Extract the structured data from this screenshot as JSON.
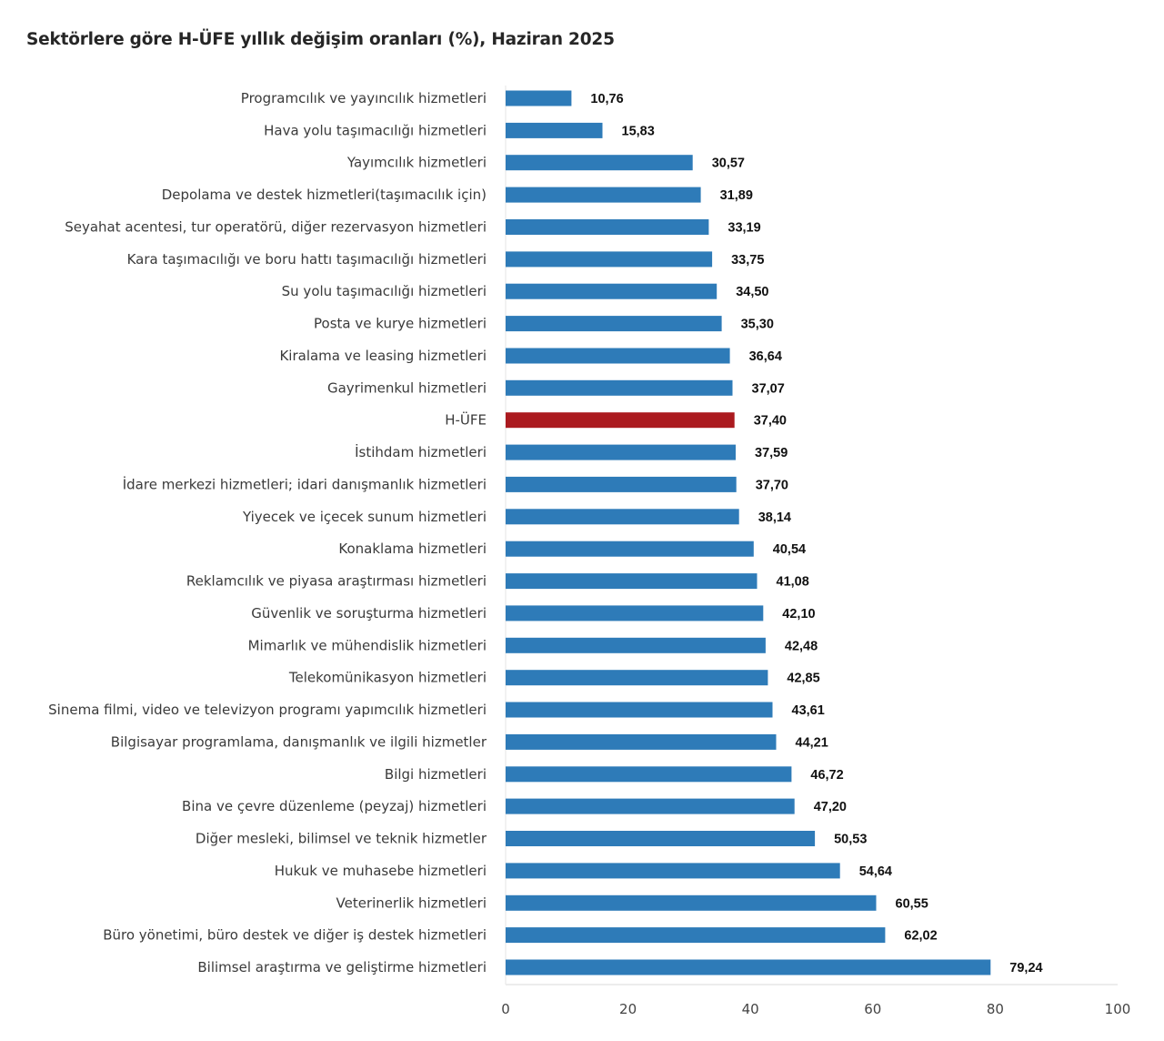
{
  "chart_data": {
    "type": "bar",
    "orientation": "horizontal",
    "title": "Sektörlere göre H-ÜFE yıllık değişim oranları (%), Haziran 2025",
    "xlabel": "",
    "ylabel": "",
    "xlim": [
      0,
      100
    ],
    "xticks": [
      0,
      20,
      40,
      60,
      80,
      100
    ],
    "xtick_labels": [
      "0",
      "20",
      "40",
      "60",
      "80",
      "100"
    ],
    "grid": false,
    "legend": null,
    "categories": [
      "Programcılık ve yayıncılık hizmetleri",
      "Hava yolu taşımacılığı hizmetleri",
      "Yayımcılık hizmetleri",
      "Depolama ve destek hizmetleri(taşımacılık için)",
      "Seyahat acentesi, tur operatörü, diğer rezervasyon hizmetleri",
      "Kara taşımacılığı ve boru hattı taşımacılığı hizmetleri",
      "Su yolu taşımacılığı hizmetleri",
      "Posta ve kurye hizmetleri",
      "Kiralama ve leasing hizmetleri",
      "Gayrimenkul hizmetleri",
      "H-ÜFE",
      "İstihdam hizmetleri",
      "İdare merkezi hizmetleri; idari danışmanlık hizmetleri",
      "Yiyecek ve içecek sunum hizmetleri",
      "Konaklama hizmetleri",
      "Reklamcılık ve piyasa araştırması hizmetleri",
      "Güvenlik ve soruşturma hizmetleri",
      "Mimarlık ve mühendislik hizmetleri",
      "Telekomünikasyon hizmetleri",
      "Sinema filmi, video ve televizyon programı yapımcılık hizmetleri",
      "Bilgisayar programlama, danışmanlık ve ilgili hizmetler",
      "Bilgi hizmetleri",
      "Bina ve çevre düzenleme (peyzaj) hizmetleri",
      "Diğer mesleki, bilimsel ve teknik hizmetler",
      "Hukuk ve muhasebe hizmetleri",
      "Veterinerlik hizmetleri",
      "Büro yönetimi, büro destek ve diğer iş destek hizmetleri",
      "Bilimsel araştırma ve geliştirme hizmetleri"
    ],
    "values": [
      10.76,
      15.83,
      30.57,
      31.89,
      33.19,
      33.75,
      34.5,
      35.3,
      36.64,
      37.07,
      37.4,
      37.59,
      37.7,
      38.14,
      40.54,
      41.08,
      42.1,
      42.48,
      42.85,
      43.61,
      44.21,
      46.72,
      47.2,
      50.53,
      54.64,
      60.55,
      62.02,
      79.24
    ],
    "value_labels": [
      "10,76",
      "15,83",
      "30,57",
      "31,89",
      "33,19",
      "33,75",
      "34,50",
      "35,30",
      "36,64",
      "37,07",
      "37,40",
      "37,59",
      "37,70",
      "38,14",
      "40,54",
      "41,08",
      "42,10",
      "42,48",
      "42,85",
      "43,61",
      "44,21",
      "46,72",
      "47,20",
      "50,53",
      "54,64",
      "60,55",
      "62,02",
      "79,24"
    ],
    "highlight_category": "H-ÜFE",
    "colors": {
      "bar": "#2e7bb8",
      "highlight_bar": "#ab1a1f"
    }
  }
}
